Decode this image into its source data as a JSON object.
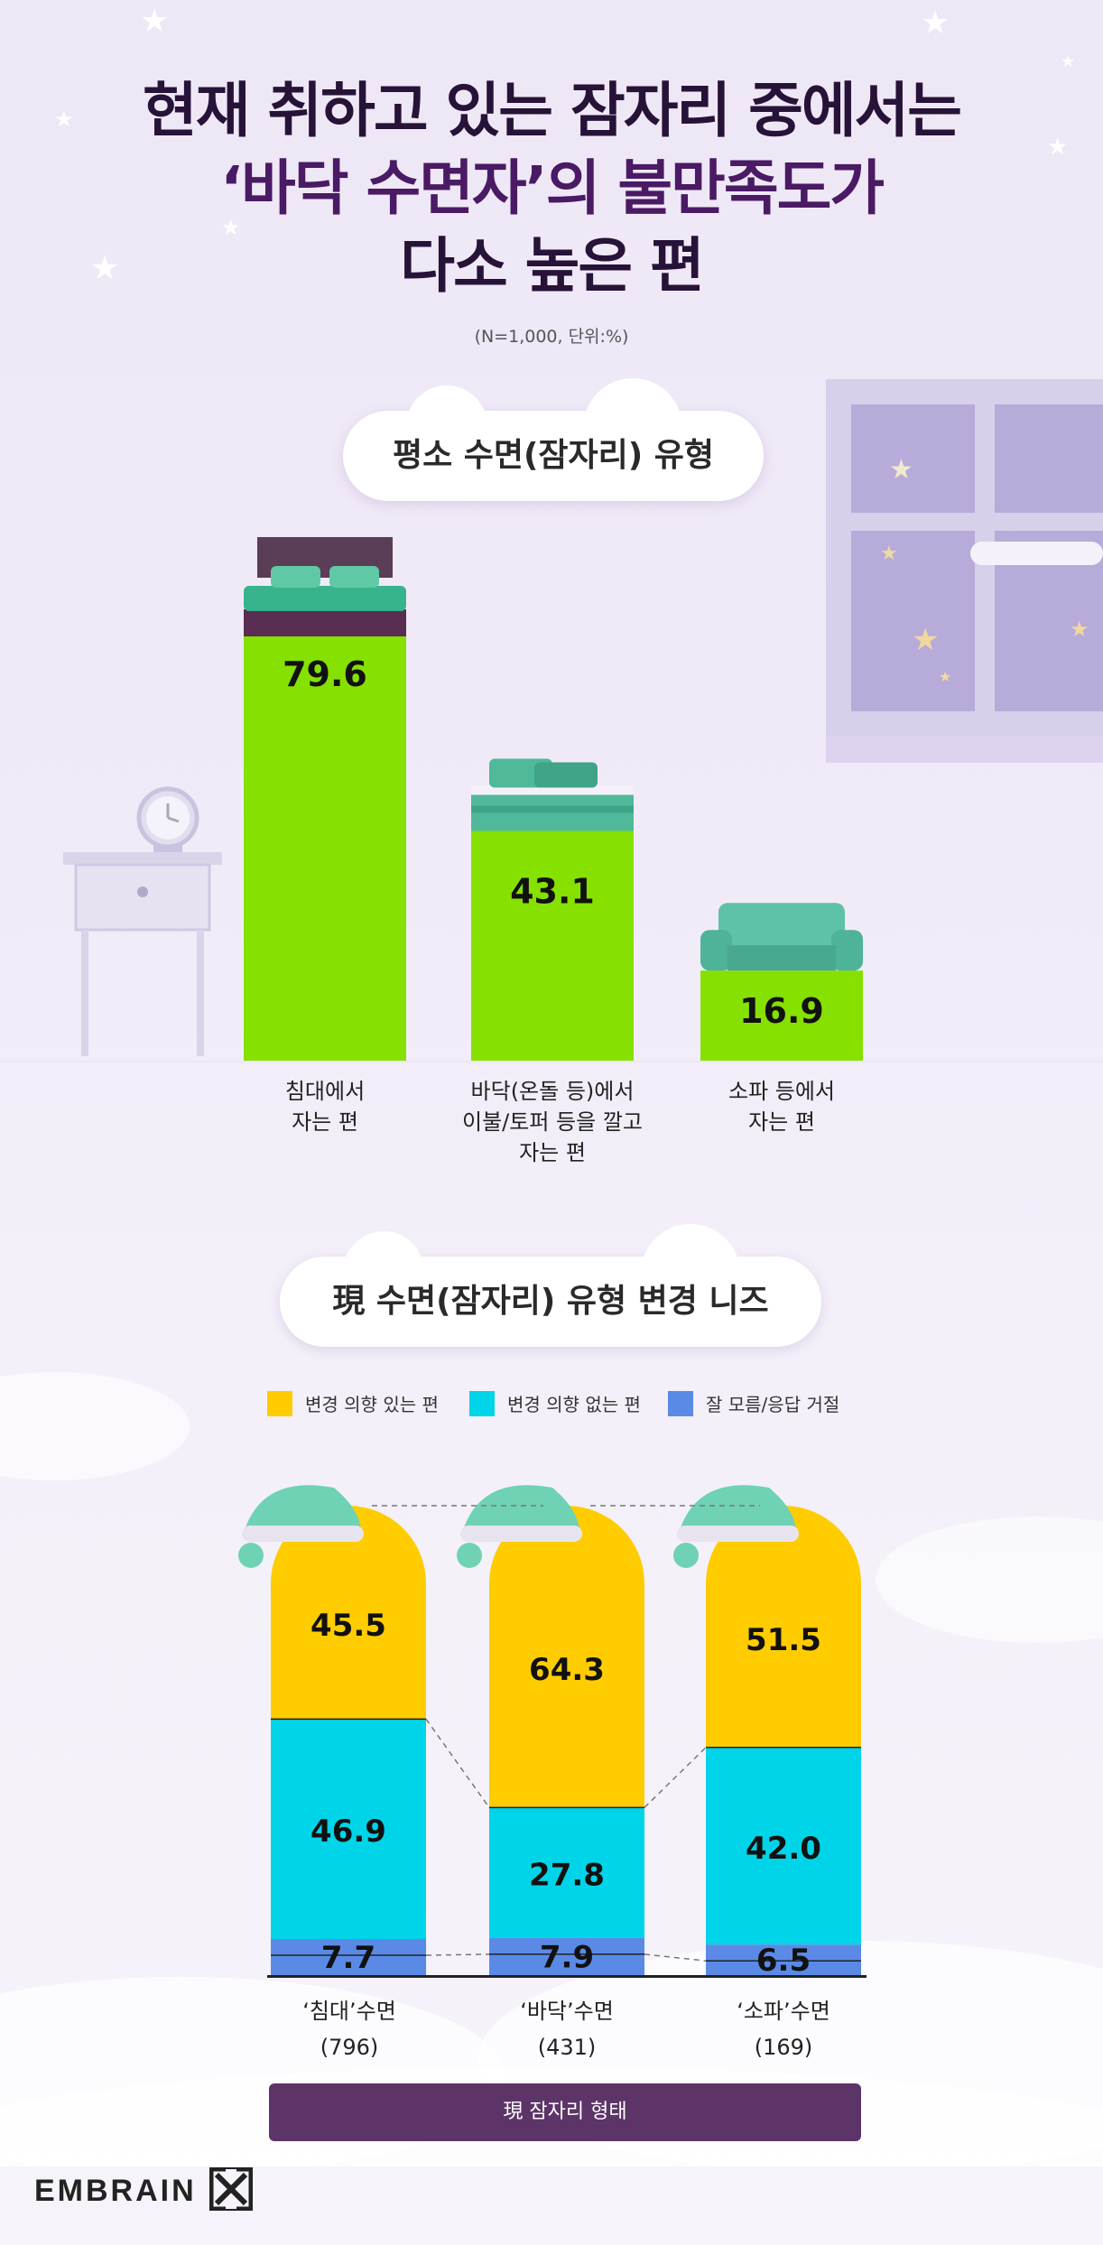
{
  "title": {
    "line1": "현재 취하고 있는 잠자리 중에서는",
    "line2": "‘바닥 수면자’의 불만족도가",
    "line3": "다소 높은 편"
  },
  "note": "(N=1,000, 단위:%)",
  "colors": {
    "bar1": "#86e000",
    "willing": "#ffcc00",
    "unwilling": "#00d4e8",
    "unknown": "#5a8ae6",
    "footer_button": "#5d3468",
    "title_text": "#271238"
  },
  "chart_data": [
    {
      "type": "bar",
      "title": "평소 수면(잠자리) 유형",
      "categories": [
        "침대에서\n자는 편",
        "바닥(온돌 등)에서\n이불/토퍼 등을 깔고\n자는 편",
        "소파 등에서\n자는 편"
      ],
      "category_lines": [
        [
          "침대에서",
          "자는 편"
        ],
        [
          "바닥(온돌 등)에서",
          "이불/토퍼 등을 깔고",
          "자는 편"
        ],
        [
          "소파 등에서",
          "자는 편"
        ]
      ],
      "values": [
        79.6,
        43.1,
        16.9
      ],
      "value_labels": [
        "79.6",
        "43.1",
        "16.9"
      ],
      "ylim": [
        0,
        100
      ],
      "grid": false
    },
    {
      "type": "bar",
      "stacked": true,
      "title": "現 수면(잠자리) 유형 변경 니즈",
      "categories": [
        "‘침대’수면",
        "‘바닥’수면",
        "‘소파’수면"
      ],
      "category_n": [
        "(796)",
        "(431)",
        "(169)"
      ],
      "series": [
        {
          "name": "변경 의향 있는 편",
          "values": [
            45.5,
            64.3,
            51.5
          ],
          "labels": [
            "45.5",
            "64.3",
            "51.5"
          ]
        },
        {
          "name": "변경 의향 없는 편",
          "values": [
            46.9,
            27.8,
            42.0
          ],
          "labels": [
            "46.9",
            "27.8",
            "42.0"
          ]
        },
        {
          "name": "잘 모름/응답 거절",
          "values": [
            7.7,
            7.9,
            6.5
          ],
          "labels": [
            "7.7",
            "7.9",
            "6.5"
          ]
        }
      ],
      "ylim": [
        0,
        100
      ],
      "legend_position": "top",
      "xlabel": "現 잠자리 형태"
    }
  ],
  "footer": {
    "button_label": "現 잠자리 형태",
    "logo_text": "EMBRAIN"
  }
}
